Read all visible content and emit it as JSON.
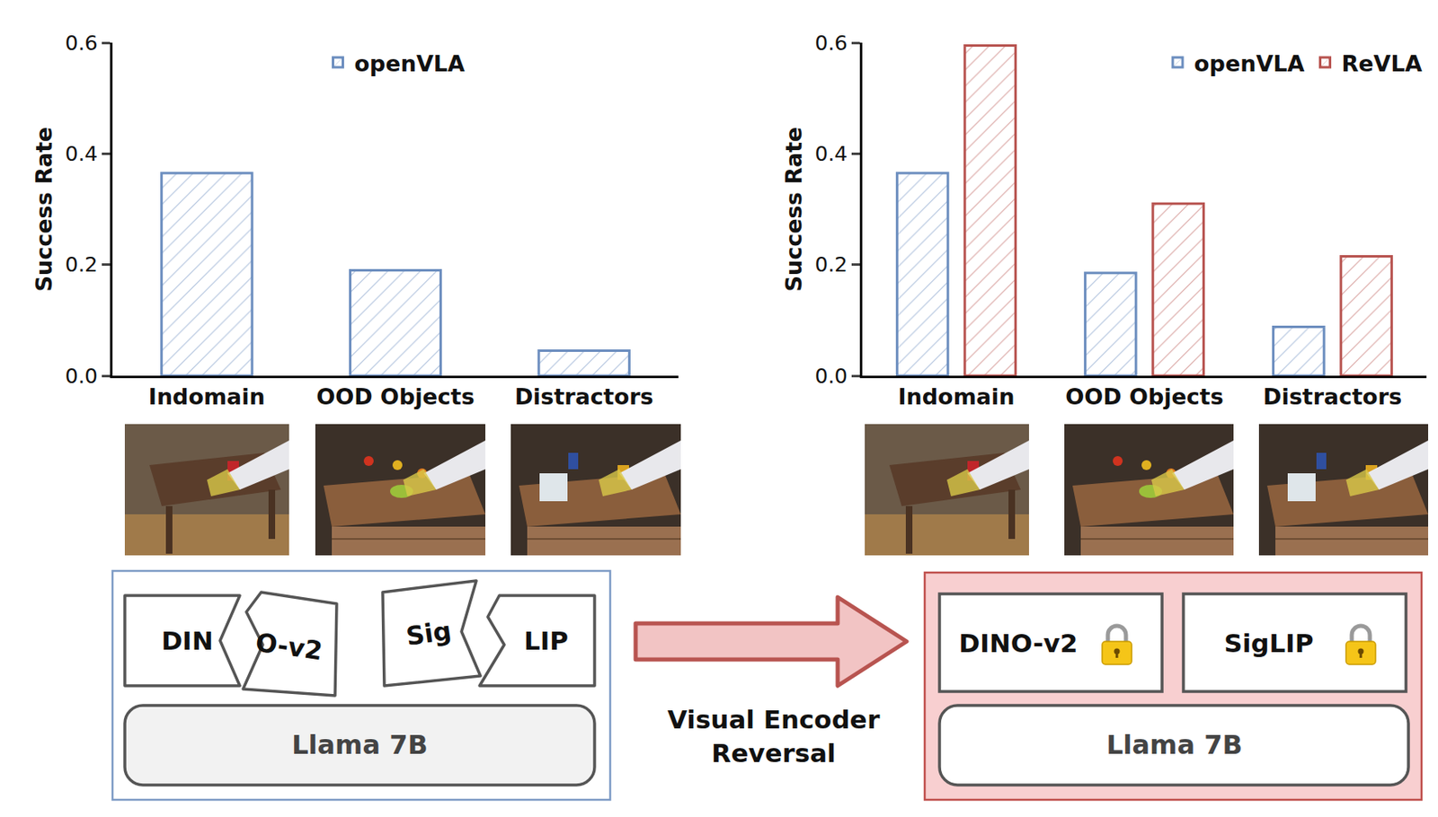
{
  "chart_data": [
    {
      "type": "bar",
      "y_label": "Success Rate",
      "categories": [
        "Indomain",
        "OOD Objects",
        "Distractors"
      ],
      "series": [
        {
          "name": "openVLA",
          "color": "#6c8ebf",
          "values": [
            0.365,
            0.19,
            0.045
          ]
        }
      ],
      "ylim": [
        0,
        0.6
      ],
      "yticks": [
        {
          "value": 0,
          "label": "0.0"
        },
        0.2,
        0.4,
        0.6
      ],
      "grid": false,
      "legend": "top"
    },
    {
      "type": "bar",
      "y_label": "Success Rate",
      "categories": [
        "Indomain",
        "OOD Objects",
        "Distractors"
      ],
      "series": [
        {
          "name": "openVLA",
          "color": "#6c8ebf",
          "values": [
            0.365,
            0.185,
            0.088
          ]
        },
        {
          "name": "ReVLA",
          "color": "#b85450",
          "values": [
            0.595,
            0.31,
            0.215
          ]
        }
      ],
      "ylim": [
        0,
        0.6
      ],
      "yticks": [
        {
          "value": 0,
          "label": "0.0"
        },
        0.2,
        0.4,
        0.6
      ],
      "grid": false,
      "legend": "top right"
    }
  ],
  "diagram": {
    "before": {
      "encoder_pieces": [
        "DIN",
        "O-v2",
        "Sig",
        "LIP"
      ],
      "llm": "Llama 7B"
    },
    "arrow_label": [
      "Visual Encoder",
      "Reversal"
    ],
    "after": {
      "encoders": [
        "DINO-v2",
        "SigLIP"
      ],
      "llm": "Llama 7B"
    }
  }
}
